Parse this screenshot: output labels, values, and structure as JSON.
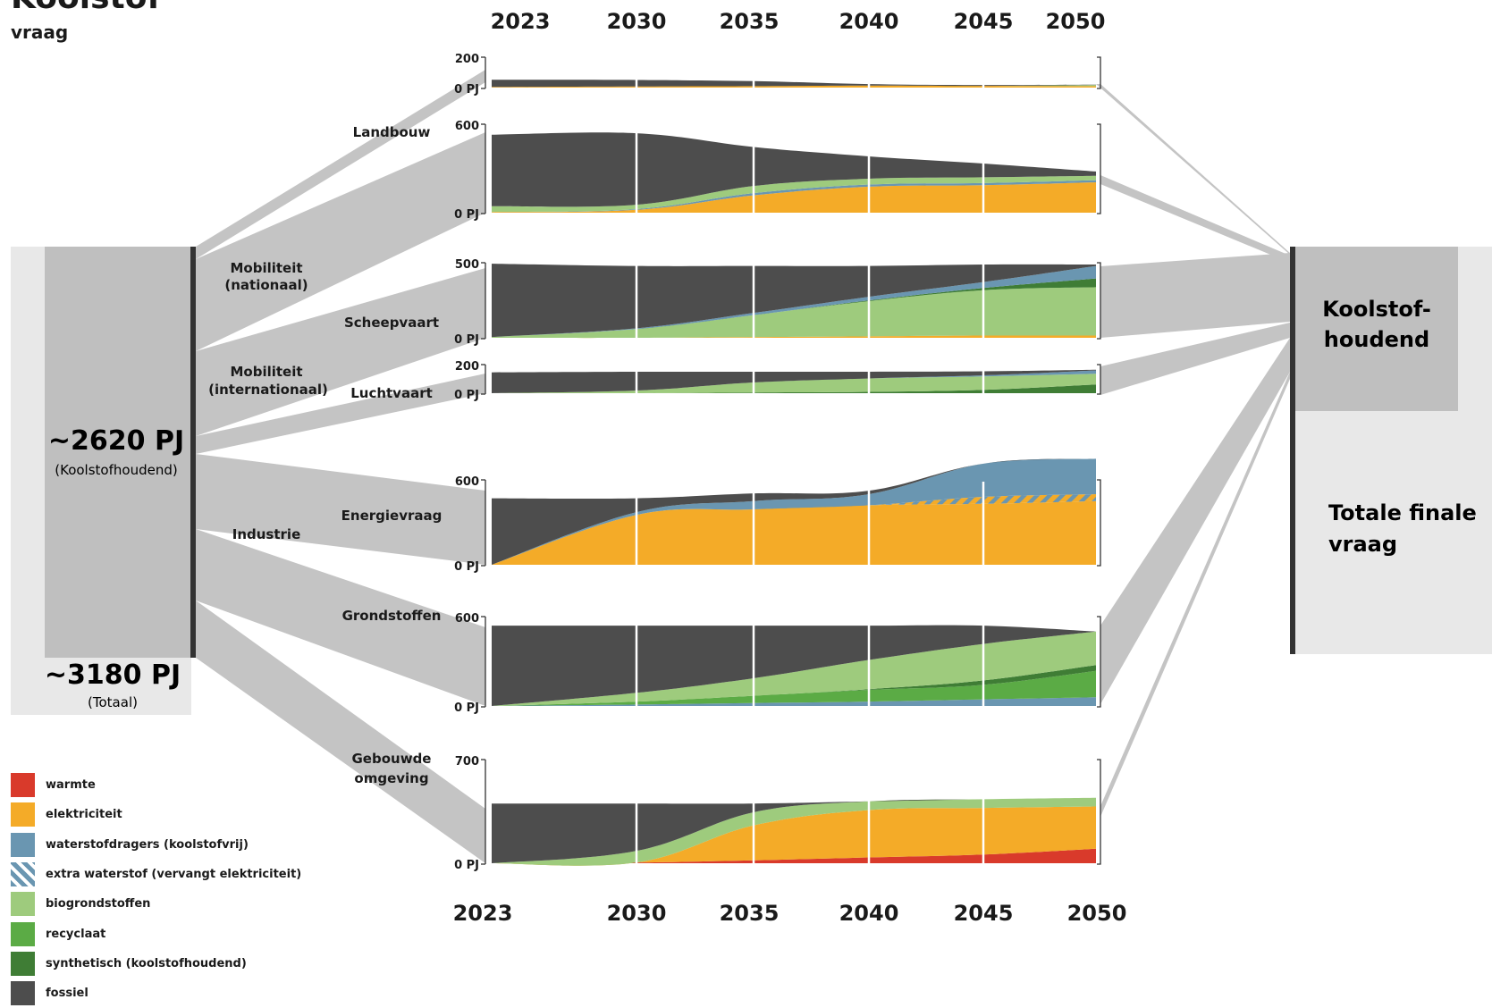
{
  "title": "Koolstof",
  "subtitle": "vraag",
  "colors": {
    "warmte": "#d93a2b",
    "elektriciteit": "#f4ab28",
    "waterstof": "#6a96b1",
    "biogrondstoffen": "#9ecb7d",
    "recyclaat": "#5bab45",
    "synthetisch": "#3f7d35",
    "fossiel": "#4d4d4d",
    "flow": "#c4c4c4",
    "box": "#bfbfbf",
    "box_light": "#e8e8e8"
  },
  "left_block": {
    "koolstof_value": "~2620 PJ",
    "koolstof_label": "(Koolstofhoudend)",
    "total_value": "~3180 PJ",
    "total_label": "(Totaal)"
  },
  "right_block": {
    "koolstof_label_1": "Koolstof-",
    "koolstof_label_2": "houdend",
    "totale_label_1": "Totale finale",
    "totale_label_2": "vraag"
  },
  "sector_labels": {
    "mob_nat_1": "Mobiliteit",
    "mob_nat_2": "(nationaal)",
    "mob_int_1": "Mobiliteit",
    "mob_int_2": "(internationaal)",
    "industrie": "Industrie",
    "gebouwde_1": "Gebouwde",
    "gebouwde_2": "omgeving"
  },
  "years_top": [
    "2023",
    "2030",
    "2035",
    "2040",
    "2045",
    "2050"
  ],
  "years_bottom": [
    "2023",
    "2030",
    "2035",
    "2040",
    "2045",
    "2050"
  ],
  "legend": [
    {
      "key": "warmte",
      "label": "warmte"
    },
    {
      "key": "elektriciteit",
      "label": "elektriciteit"
    },
    {
      "key": "waterstof",
      "label": "waterstofdragers (koolstofvrij)"
    },
    {
      "key": "extra_waterstof",
      "label": "extra waterstof (vervangt elektriciteit)"
    },
    {
      "key": "biogrondstoffen",
      "label": "biogrondstoffen"
    },
    {
      "key": "recyclaat",
      "label": "recyclaat"
    },
    {
      "key": "synthetisch",
      "label": "synthetisch (koolstofhoudend)"
    },
    {
      "key": "fossiel",
      "label": "fossiel"
    }
  ],
  "chart_data": {
    "type": "area",
    "x": [
      2023,
      2030,
      2035,
      2040,
      2045,
      2050
    ],
    "unit": "PJ",
    "panels": [
      {
        "name": "Landbouw",
        "ymax": 200,
        "ymax_label": "200",
        "zero_label": "0 PJ",
        "layers": [
          {
            "key": "elektriciteit",
            "values": [
              5,
              8,
              10,
              14,
              12,
              10
            ]
          },
          {
            "key": "biogrondstoffen",
            "values": [
              0,
              0,
              0,
              0,
              0,
              8
            ]
          },
          {
            "key": "fossiel",
            "values": [
              50,
              45,
              35,
              10,
              6,
              2
            ]
          }
        ]
      },
      {
        "name": "Mobiliteit (nationaal)",
        "ymax": 600,
        "ymax_label": "600",
        "zero_label": "0 PJ",
        "layers": [
          {
            "key": "elektriciteit",
            "values": [
              5,
              20,
              120,
              180,
              190,
              210
            ]
          },
          {
            "key": "waterstof",
            "values": [
              0,
              5,
              15,
              15,
              15,
              15
            ]
          },
          {
            "key": "biogrondstoffen",
            "values": [
              40,
              30,
              50,
              40,
              40,
              30
            ]
          },
          {
            "key": "fossiel",
            "values": [
              495,
              495,
              270,
              155,
              95,
              30
            ]
          }
        ]
      },
      {
        "name": "Scheepvaart",
        "ymax": 500,
        "ymax_label": "500",
        "zero_label": "0 PJ",
        "layers": [
          {
            "key": "elektriciteit",
            "values": [
              0,
              0,
              5,
              10,
              15,
              15
            ]
          },
          {
            "key": "biogrondstoffen",
            "values": [
              5,
              60,
              150,
              240,
              310,
              330
            ]
          },
          {
            "key": "synthetisch",
            "values": [
              0,
              0,
              0,
              5,
              15,
              60
            ]
          },
          {
            "key": "waterstof",
            "values": [
              0,
              5,
              15,
              25,
              40,
              85
            ]
          },
          {
            "key": "fossiel",
            "values": [
              500,
              425,
              320,
              210,
              120,
              10
            ]
          }
        ]
      },
      {
        "name": "Luchtvaart",
        "ymax": 200,
        "ymax_label": "200",
        "zero_label": "0 PJ",
        "layers": [
          {
            "key": "synthetisch",
            "values": [
              0,
              0,
              5,
              10,
              25,
              65
            ]
          },
          {
            "key": "biogrondstoffen",
            "values": [
              0,
              20,
              75,
              100,
              100,
              80
            ]
          },
          {
            "key": "waterstof",
            "values": [
              0,
              0,
              0,
              0,
              8,
              25
            ]
          },
          {
            "key": "fossiel",
            "values": [
              155,
              140,
              80,
              50,
              30,
              5
            ]
          }
        ]
      },
      {
        "name": "Energievraag",
        "ymax": 600,
        "ymax_label": "600",
        "zero_label": "0 PJ",
        "layers": [
          {
            "key": "elektriciteit",
            "values": [
              0,
              360,
              400,
              430,
              440,
              460
            ]
          },
          {
            "key": "extra_waterstof",
            "values": [
              0,
              0,
              0,
              0,
              50,
              50
            ]
          },
          {
            "key": "waterstof",
            "values": [
              0,
              20,
              60,
              80,
              240,
              255
            ]
          },
          {
            "key": "fossiel",
            "values": [
              480,
              100,
              55,
              25,
              0,
              0
            ]
          }
        ]
      },
      {
        "name": "Grondstoffen",
        "ymax": 600,
        "ymax_label": "600",
        "zero_label": "0 PJ",
        "layers": [
          {
            "key": "waterstof",
            "values": [
              0,
              10,
              20,
              30,
              45,
              60
            ]
          },
          {
            "key": "recyclaat",
            "values": [
              0,
              20,
              50,
              80,
              100,
              180
            ]
          },
          {
            "key": "synthetisch",
            "values": [
              0,
              0,
              0,
              5,
              30,
              40
            ]
          },
          {
            "key": "biogrondstoffen",
            "values": [
              0,
              60,
              120,
              200,
              250,
              230
            ]
          },
          {
            "key": "fossiel",
            "values": [
              550,
              460,
              360,
              235,
              125,
              0
            ]
          }
        ]
      },
      {
        "name": "Gebouwde omgeving",
        "ymax": 700,
        "ymax_label": "700",
        "zero_label": "0 PJ",
        "layers": [
          {
            "key": "warmte",
            "values": [
              0,
              5,
              20,
              40,
              60,
              100
            ]
          },
          {
            "key": "elektriciteit",
            "values": [
              0,
              0,
              240,
              325,
              320,
              290
            ]
          },
          {
            "key": "biogrondstoffen",
            "values": [
              0,
              80,
              90,
              60,
              60,
              60
            ]
          },
          {
            "key": "fossiel",
            "values": [
              410,
              325,
              60,
              0,
              0,
              0
            ]
          }
        ]
      }
    ]
  }
}
